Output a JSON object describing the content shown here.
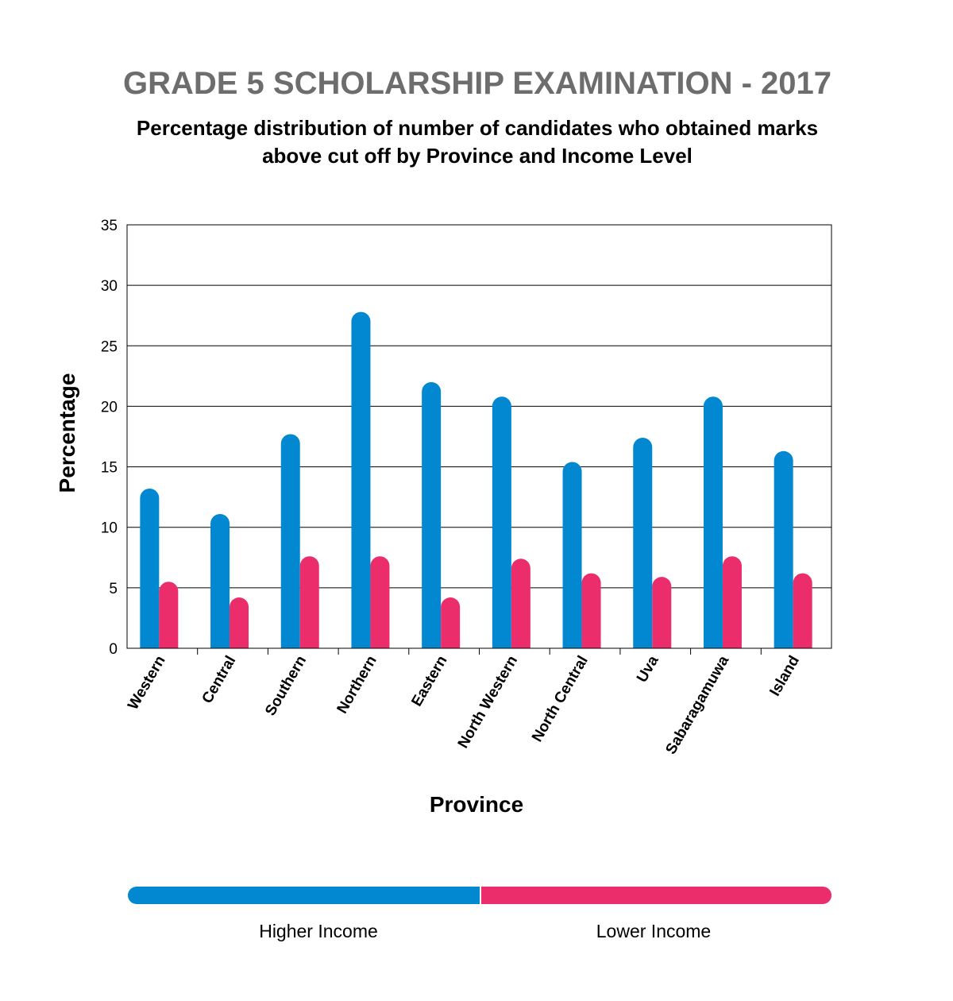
{
  "chart_data": {
    "type": "bar",
    "title": "GRADE 5 SCHOLARSHIP EXAMINATION - 2017",
    "subtitle_lines": [
      "Percentage distribution of number of candidates who obtained marks",
      "above cut off by Province and Income Level"
    ],
    "xlabel": "Province",
    "ylabel": "Percentage",
    "ylim": [
      0,
      35
    ],
    "yticks": [
      0,
      5,
      10,
      15,
      20,
      25,
      30,
      35
    ],
    "grid": true,
    "legend_position": "bottom",
    "categories": [
      "Western",
      "Central",
      "Southern",
      "Northern",
      "Eastern",
      "North Western",
      "North Central",
      "Uva",
      "Sabaragamuwa",
      "Island"
    ],
    "series": [
      {
        "name": "Higher Income",
        "color": "#0288d1",
        "values": [
          13.2,
          11.1,
          17.7,
          27.8,
          22.0,
          20.8,
          15.4,
          17.4,
          20.8,
          16.3
        ]
      },
      {
        "name": "Lower Income",
        "color": "#ec2d6b",
        "values": [
          5.5,
          4.2,
          7.6,
          7.6,
          4.2,
          7.4,
          6.2,
          5.9,
          7.6,
          6.2
        ]
      }
    ]
  }
}
